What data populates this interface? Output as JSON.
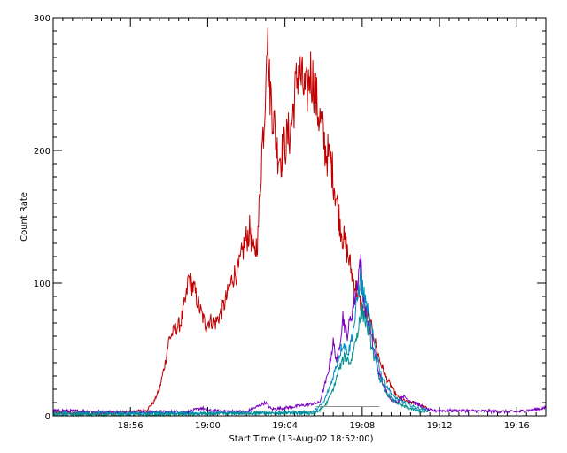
{
  "chart_data": {
    "type": "line",
    "title": "",
    "xlabel": "Start Time (13-Aug-02 18:52:00)",
    "ylabel": "Count Rate",
    "x_units": "minutes after 18:52:00",
    "xlim": [
      0,
      25.5
    ],
    "ylim": [
      0,
      300
    ],
    "x_ticks": [
      {
        "value": 4,
        "label": "18:56"
      },
      {
        "value": 8,
        "label": "19:00"
      },
      {
        "value": 12,
        "label": "19:04"
      },
      {
        "value": 16,
        "label": "19:08"
      },
      {
        "value": 20,
        "label": "19:12"
      },
      {
        "value": 24,
        "label": "19:16"
      }
    ],
    "y_ticks": [
      {
        "value": 0,
        "label": "0"
      },
      {
        "value": 100,
        "label": "100"
      },
      {
        "value": 200,
        "label": "200"
      },
      {
        "value": 300,
        "label": "300"
      }
    ],
    "grid": false,
    "legend": "none",
    "series": [
      {
        "color": "#c00000",
        "points": [
          [
            0,
            3
          ],
          [
            1,
            2
          ],
          [
            2,
            2
          ],
          [
            3,
            2
          ],
          [
            4,
            3
          ],
          [
            4.8,
            4
          ],
          [
            5.2,
            10
          ],
          [
            5.5,
            20
          ],
          [
            5.8,
            40
          ],
          [
            6.0,
            58
          ],
          [
            6.3,
            65
          ],
          [
            6.6,
            70
          ],
          [
            6.9,
            90
          ],
          [
            7.0,
            104
          ],
          [
            7.3,
            95
          ],
          [
            7.6,
            80
          ],
          [
            7.9,
            68
          ],
          [
            8.1,
            72
          ],
          [
            8.4,
            70
          ],
          [
            8.7,
            78
          ],
          [
            9.0,
            90
          ],
          [
            9.3,
            105
          ],
          [
            9.6,
            110
          ],
          [
            9.9,
            130
          ],
          [
            10.2,
            140
          ],
          [
            10.4,
            120
          ],
          [
            10.6,
            135
          ],
          [
            10.8,
            200
          ],
          [
            10.95,
            230
          ],
          [
            11.05,
            292
          ],
          [
            11.2,
            250
          ],
          [
            11.4,
            225
          ],
          [
            11.6,
            200
          ],
          [
            11.8,
            195
          ],
          [
            12.0,
            205
          ],
          [
            12.3,
            215
          ],
          [
            12.5,
            240
          ],
          [
            12.7,
            262
          ],
          [
            12.9,
            250
          ],
          [
            13.1,
            240
          ],
          [
            13.3,
            260
          ],
          [
            13.5,
            250
          ],
          [
            13.7,
            230
          ],
          [
            13.9,
            218
          ],
          [
            14.1,
            200
          ],
          [
            14.4,
            190
          ],
          [
            14.6,
            170
          ],
          [
            14.8,
            150
          ],
          [
            15.0,
            135
          ],
          [
            15.2,
            125
          ],
          [
            15.5,
            105
          ],
          [
            15.8,
            90
          ],
          [
            16.0,
            80
          ],
          [
            16.3,
            75
          ],
          [
            16.6,
            60
          ],
          [
            16.9,
            42
          ],
          [
            17.2,
            30
          ],
          [
            17.5,
            22
          ],
          [
            17.8,
            15
          ],
          [
            18.1,
            12
          ],
          [
            18.4,
            10
          ],
          [
            18.7,
            10
          ],
          [
            19.0,
            8
          ],
          [
            19.3,
            6
          ],
          [
            19.5,
            4
          ]
        ]
      },
      {
        "color": "#7a00c0",
        "points": [
          [
            0,
            4
          ],
          [
            3,
            3
          ],
          [
            7,
            3
          ],
          [
            7.7,
            6
          ],
          [
            8,
            4
          ],
          [
            10,
            3
          ],
          [
            11.0,
            10
          ],
          [
            11.3,
            5
          ],
          [
            12,
            6
          ],
          [
            13,
            8
          ],
          [
            13.8,
            10
          ],
          [
            14.2,
            30
          ],
          [
            14.5,
            55
          ],
          [
            14.7,
            40
          ],
          [
            15.0,
            75
          ],
          [
            15.2,
            60
          ],
          [
            15.5,
            80
          ],
          [
            15.7,
            95
          ],
          [
            15.9,
            118
          ],
          [
            16.1,
            85
          ],
          [
            16.3,
            70
          ],
          [
            16.6,
            50
          ],
          [
            16.9,
            30
          ],
          [
            17.2,
            20
          ],
          [
            17.5,
            12
          ],
          [
            17.8,
            10
          ],
          [
            18.1,
            15
          ],
          [
            18.4,
            12
          ],
          [
            18.7,
            10
          ],
          [
            19.0,
            8
          ],
          [
            19.3,
            5
          ],
          [
            19.6,
            4
          ],
          [
            21,
            4
          ],
          [
            24,
            3
          ],
          [
            25.5,
            6
          ]
        ]
      },
      {
        "color": "#0090c0",
        "points": [
          [
            0,
            2
          ],
          [
            4,
            2
          ],
          [
            8,
            2
          ],
          [
            10,
            2
          ],
          [
            13.5,
            3
          ],
          [
            14.0,
            10
          ],
          [
            14.4,
            25
          ],
          [
            14.7,
            40
          ],
          [
            15.0,
            55
          ],
          [
            15.3,
            48
          ],
          [
            15.6,
            70
          ],
          [
            15.9,
            105
          ],
          [
            16.1,
            90
          ],
          [
            16.4,
            70
          ],
          [
            16.7,
            50
          ],
          [
            17.0,
            30
          ],
          [
            17.3,
            22
          ],
          [
            17.6,
            15
          ],
          [
            17.9,
            12
          ],
          [
            18.2,
            10
          ],
          [
            18.5,
            8
          ],
          [
            18.8,
            6
          ],
          [
            19.1,
            5
          ],
          [
            19.4,
            4
          ]
        ]
      },
      {
        "color": "#009090",
        "points": [
          [
            0,
            1
          ],
          [
            5,
            1
          ],
          [
            10,
            2
          ],
          [
            13.6,
            2
          ],
          [
            14.1,
            8
          ],
          [
            14.5,
            20
          ],
          [
            14.8,
            35
          ],
          [
            15.1,
            45
          ],
          [
            15.4,
            40
          ],
          [
            15.7,
            60
          ],
          [
            16.0,
            80
          ],
          [
            16.3,
            65
          ],
          [
            16.6,
            45
          ],
          [
            16.9,
            28
          ],
          [
            17.2,
            18
          ],
          [
            17.6,
            12
          ],
          [
            18.0,
            8
          ],
          [
            18.4,
            6
          ],
          [
            18.8,
            4
          ],
          [
            19.4,
            3
          ]
        ]
      },
      {
        "color": "#909090",
        "points": [
          [
            13.6,
            7
          ],
          [
            16.9,
            7
          ]
        ]
      }
    ]
  }
}
